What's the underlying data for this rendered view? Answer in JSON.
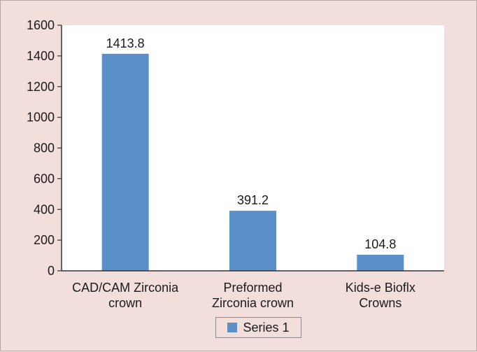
{
  "chart_data": {
    "type": "bar",
    "title": "",
    "xlabel": "",
    "ylabel": "",
    "ylim": [
      0,
      1600
    ],
    "yticks": [
      0,
      200,
      400,
      600,
      800,
      1000,
      1200,
      1400,
      1600
    ],
    "categories": [
      [
        "CAD/CAM Zirconia",
        "crown"
      ],
      [
        "Preformed",
        "Zirconia crown"
      ],
      [
        "Kids-e Bioflx",
        "Crowns"
      ]
    ],
    "series": [
      {
        "name": "Series 1",
        "values": [
          1413.8,
          391.2,
          104.8
        ],
        "color": "#5b8fc9"
      }
    ],
    "data_labels": [
      "1413.8",
      "391.2",
      "104.8"
    ],
    "legend_position": "bottom",
    "grid": false
  },
  "colors": {
    "background": "#f2dfdb",
    "plot_background": "#ffffff",
    "bar": "#5b8fc9"
  }
}
